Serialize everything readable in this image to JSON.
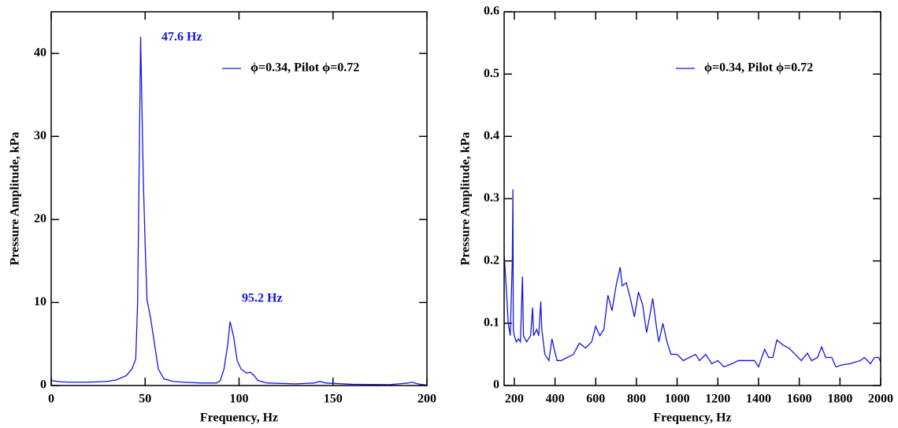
{
  "chart_data": [
    {
      "type": "line",
      "xlabel": "Frequency, Hz",
      "ylabel": "Pressure Amplitude, kPa",
      "xlim": [
        0,
        200
      ],
      "xticks": [
        0,
        50,
        100,
        150,
        200
      ],
      "ylim": [
        0,
        45
      ],
      "yticks": [
        0,
        10,
        20,
        30,
        40
      ],
      "annotations": [
        "47.6 Hz",
        "95.2 Hz"
      ],
      "legend": "upper right",
      "x": [
        0,
        5,
        10,
        20,
        30,
        35,
        40,
        43,
        45,
        46,
        47.6,
        49,
        50,
        51,
        53,
        55,
        57,
        60,
        65,
        70,
        80,
        88,
        90,
        92,
        94,
        95.2,
        97,
        99,
        101,
        104,
        106,
        108,
        110,
        115,
        130,
        140,
        143,
        146,
        160,
        180,
        190,
        192,
        195,
        200
      ],
      "series": [
        {
          "name": "ϕ=0.34, Pilot ϕ=0.72",
          "color": "#1414e6",
          "values": [
            0.6,
            0.45,
            0.4,
            0.4,
            0.5,
            0.7,
            1.2,
            2,
            3.2,
            10,
            42,
            25,
            17,
            10.3,
            8,
            5,
            2,
            0.8,
            0.5,
            0.4,
            0.3,
            0.3,
            0.6,
            2,
            5,
            7.7,
            6,
            3,
            2,
            1.5,
            1.6,
            1.2,
            0.6,
            0.3,
            0.2,
            0.3,
            0.5,
            0.3,
            0.15,
            0.1,
            0.3,
            0.4,
            0.2,
            0.05
          ]
        }
      ]
    },
    {
      "type": "line",
      "xlabel": "Frequency, Hz",
      "ylabel": "Pressure Amplitude, kPa",
      "xlim": [
        150,
        2000
      ],
      "xticks": [
        200,
        400,
        600,
        800,
        1000,
        1200,
        1400,
        1600,
        1800,
        2000
      ],
      "ylim": [
        0,
        0.6
      ],
      "yticks": [
        0,
        0.1,
        0.2,
        0.3,
        0.4,
        0.5,
        0.6
      ],
      "legend": "upper right",
      "x": [
        150,
        160,
        170,
        180,
        190,
        193,
        195,
        200,
        210,
        220,
        230,
        240,
        245,
        260,
        280,
        290,
        295,
        310,
        320,
        330,
        335,
        350,
        370,
        385,
        395,
        410,
        430,
        460,
        490,
        520,
        550,
        580,
        600,
        620,
        640,
        660,
        680,
        700,
        720,
        730,
        750,
        770,
        790,
        810,
        830,
        850,
        870,
        880,
        900,
        910,
        930,
        950,
        970,
        1000,
        1030,
        1060,
        1090,
        1110,
        1140,
        1170,
        1200,
        1230,
        1270,
        1300,
        1340,
        1380,
        1400,
        1430,
        1450,
        1470,
        1490,
        1520,
        1550,
        1580,
        1610,
        1640,
        1660,
        1690,
        1710,
        1730,
        1760,
        1780,
        1810,
        1850,
        1900,
        1920,
        1950,
        1970,
        1990,
        2000
      ],
      "series": [
        {
          "name": "ϕ=0.34, Pilot ϕ=0.72",
          "color": "#1414e6",
          "values": [
            0.21,
            0.16,
            0.1,
            0.08,
            0.2,
            0.315,
            0.09,
            0.08,
            0.07,
            0.075,
            0.07,
            0.175,
            0.08,
            0.07,
            0.08,
            0.125,
            0.08,
            0.09,
            0.08,
            0.135,
            0.09,
            0.05,
            0.04,
            0.075,
            0.06,
            0.04,
            0.04,
            0.045,
            0.05,
            0.068,
            0.06,
            0.07,
            0.095,
            0.08,
            0.09,
            0.145,
            0.12,
            0.16,
            0.19,
            0.16,
            0.165,
            0.14,
            0.11,
            0.15,
            0.13,
            0.085,
            0.12,
            0.14,
            0.09,
            0.07,
            0.1,
            0.07,
            0.05,
            0.05,
            0.04,
            0.045,
            0.05,
            0.04,
            0.05,
            0.035,
            0.04,
            0.03,
            0.035,
            0.04,
            0.04,
            0.04,
            0.03,
            0.058,
            0.045,
            0.045,
            0.073,
            0.065,
            0.06,
            0.05,
            0.04,
            0.052,
            0.04,
            0.045,
            0.062,
            0.045,
            0.045,
            0.03,
            0.033,
            0.035,
            0.04,
            0.045,
            0.035,
            0.045,
            0.045,
            0.038
          ]
        }
      ]
    }
  ]
}
